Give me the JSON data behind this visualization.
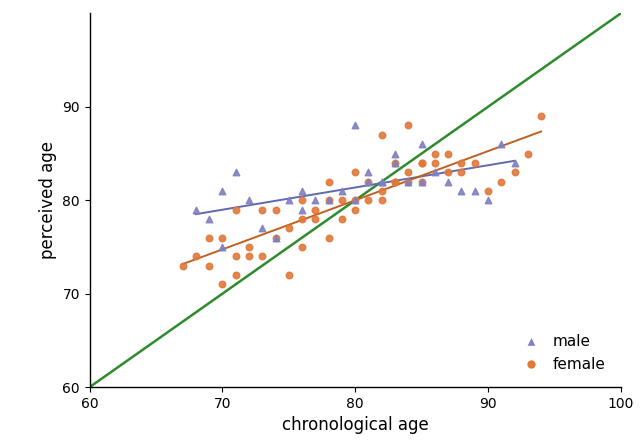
{
  "male_x": [
    68,
    69,
    70,
    70,
    71,
    72,
    73,
    74,
    75,
    76,
    76,
    77,
    78,
    79,
    80,
    80,
    81,
    81,
    82,
    82,
    83,
    83,
    84,
    85,
    85,
    86,
    87,
    88,
    89,
    90,
    91,
    92
  ],
  "male_y": [
    79,
    78,
    81,
    75,
    83,
    80,
    77,
    76,
    80,
    79,
    81,
    80,
    80,
    81,
    80,
    88,
    82,
    83,
    82,
    82,
    84,
    85,
    82,
    86,
    82,
    83,
    82,
    81,
    81,
    80,
    86,
    84
  ],
  "female_x": [
    67,
    68,
    69,
    69,
    70,
    70,
    71,
    71,
    71,
    72,
    72,
    73,
    73,
    74,
    74,
    75,
    75,
    76,
    76,
    76,
    77,
    77,
    78,
    78,
    78,
    79,
    79,
    80,
    80,
    80,
    81,
    81,
    82,
    82,
    82,
    83,
    83,
    83,
    84,
    84,
    84,
    85,
    85,
    85,
    86,
    86,
    87,
    87,
    88,
    88,
    89,
    90,
    91,
    92,
    93,
    94
  ],
  "female_y": [
    73,
    74,
    73,
    76,
    71,
    76,
    72,
    74,
    79,
    74,
    75,
    74,
    79,
    76,
    79,
    72,
    77,
    75,
    78,
    80,
    78,
    79,
    76,
    80,
    82,
    78,
    80,
    79,
    80,
    83,
    80,
    82,
    80,
    81,
    87,
    82,
    82,
    84,
    82,
    83,
    88,
    82,
    84,
    84,
    84,
    85,
    83,
    85,
    83,
    84,
    84,
    81,
    82,
    83,
    85,
    89
  ],
  "identity_line_x": [
    60,
    100
  ],
  "identity_line_y": [
    60,
    100
  ],
  "male_color": "#8080c0",
  "female_color": "#e07838",
  "identity_color": "#2e8b2e",
  "male_reg_color": "#6068b0",
  "female_reg_color": "#c06020",
  "xlabel": "chronological age",
  "ylabel": "perceived age",
  "xlim": [
    60,
    100
  ],
  "ylim": [
    60,
    100
  ],
  "xticks": [
    60,
    70,
    80,
    90,
    100
  ],
  "yticks": [
    60,
    70,
    80,
    90
  ],
  "legend_male": "male",
  "legend_female": "female",
  "marker_size": 22,
  "identity_linewidth": 1.8,
  "reg_linewidth": 1.4
}
